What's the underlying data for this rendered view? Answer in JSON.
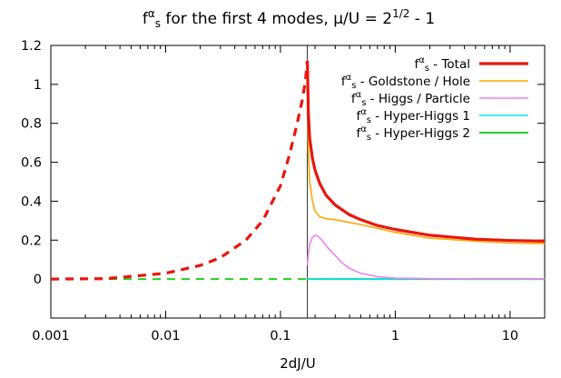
{
  "chart_data": {
    "type": "line",
    "title": {
      "base": "f",
      "sup": "α",
      "sub": "s",
      "rest": " for the first 4 modes, μ/U = 2",
      "exp": "1/2",
      "tail": " - 1"
    },
    "xlabel": "2dJ/U",
    "ylabel": "",
    "x_scale": "log",
    "xlim": [
      0.001,
      20
    ],
    "ylim": [
      -0.2,
      1.2
    ],
    "x_ticks": [
      {
        "value": 0.001,
        "label": "0.001"
      },
      {
        "value": 0.01,
        "label": "0.01"
      },
      {
        "value": 0.1,
        "label": "0.1"
      },
      {
        "value": 1,
        "label": "1"
      },
      {
        "value": 10,
        "label": "10"
      }
    ],
    "y_ticks": [
      {
        "value": 0,
        "label": "0"
      },
      {
        "value": 0.2,
        "label": "0.2"
      },
      {
        "value": 0.4,
        "label": "0.4"
      },
      {
        "value": 0.6,
        "label": "0.6"
      },
      {
        "value": 0.8,
        "label": "0.8"
      },
      {
        "value": 1.0,
        "label": "1"
      },
      {
        "value": 1.2,
        "label": "1.2"
      }
    ],
    "transition_x": 0.1716,
    "legend_position": "top-right",
    "series": [
      {
        "name": "Total",
        "legend_sub": " - Total",
        "color": "#e8160c",
        "width": 3.2,
        "dashed_segment": [
          [
            0.001,
            0.0
          ],
          [
            0.003,
            0.002
          ],
          [
            0.01,
            0.03
          ],
          [
            0.02,
            0.07
          ],
          [
            0.03,
            0.11
          ],
          [
            0.05,
            0.2
          ],
          [
            0.07,
            0.3
          ],
          [
            0.1,
            0.48
          ],
          [
            0.12,
            0.64
          ],
          [
            0.14,
            0.8
          ],
          [
            0.155,
            0.92
          ],
          [
            0.165,
            1.02
          ],
          [
            0.171,
            1.12
          ]
        ],
        "solid_segment": [
          [
            0.1716,
            1.12
          ],
          [
            0.175,
            0.85
          ],
          [
            0.18,
            0.72
          ],
          [
            0.19,
            0.62
          ],
          [
            0.2,
            0.56
          ],
          [
            0.22,
            0.49
          ],
          [
            0.25,
            0.43
          ],
          [
            0.3,
            0.38
          ],
          [
            0.4,
            0.33
          ],
          [
            0.5,
            0.305
          ],
          [
            0.7,
            0.275
          ],
          [
            1.0,
            0.255
          ],
          [
            2.0,
            0.225
          ],
          [
            5.0,
            0.205
          ],
          [
            10,
            0.198
          ],
          [
            20,
            0.195
          ]
        ]
      },
      {
        "name": "Goldstone / Hole",
        "legend_sub": " - Goldstone / Hole",
        "color": "#ffa500",
        "width": 1.6,
        "dashed_segment": [
          [
            0.001,
            0.0
          ],
          [
            0.003,
            0.002
          ],
          [
            0.01,
            0.03
          ],
          [
            0.02,
            0.07
          ],
          [
            0.03,
            0.11
          ],
          [
            0.05,
            0.2
          ],
          [
            0.07,
            0.3
          ],
          [
            0.1,
            0.48
          ],
          [
            0.12,
            0.64
          ],
          [
            0.14,
            0.8
          ],
          [
            0.155,
            0.92
          ],
          [
            0.165,
            1.02
          ],
          [
            0.171,
            1.08
          ]
        ],
        "solid_segment": [
          [
            0.1716,
            1.08
          ],
          [
            0.173,
            0.85
          ],
          [
            0.175,
            0.65
          ],
          [
            0.18,
            0.5
          ],
          [
            0.19,
            0.4
          ],
          [
            0.2,
            0.35
          ],
          [
            0.22,
            0.32
          ],
          [
            0.25,
            0.31
          ],
          [
            0.3,
            0.305
          ],
          [
            0.5,
            0.28
          ],
          [
            1.0,
            0.24
          ],
          [
            2.0,
            0.21
          ],
          [
            5.0,
            0.195
          ],
          [
            10,
            0.185
          ],
          [
            20,
            0.183
          ]
        ]
      },
      {
        "name": "Higgs / Particle",
        "legend_sub": " - Higgs / Particle",
        "color": "#ee82ee",
        "width": 1.6,
        "dashed_segment": [],
        "solid_segment": [
          [
            0.1716,
            0.07
          ],
          [
            0.175,
            0.13
          ],
          [
            0.18,
            0.18
          ],
          [
            0.19,
            0.215
          ],
          [
            0.2,
            0.225
          ],
          [
            0.21,
            0.222
          ],
          [
            0.23,
            0.2
          ],
          [
            0.26,
            0.16
          ],
          [
            0.3,
            0.12
          ],
          [
            0.35,
            0.08
          ],
          [
            0.4,
            0.055
          ],
          [
            0.5,
            0.03
          ],
          [
            0.7,
            0.012
          ],
          [
            1.0,
            0.005
          ],
          [
            2.0,
            0.002
          ],
          [
            5.0,
            0.0
          ],
          [
            20,
            0.0
          ]
        ]
      },
      {
        "name": "Hyper-Higgs 1",
        "legend_sub": " - Hyper-Higgs 1",
        "color": "#00e5ee",
        "width": 1.6,
        "dashed_segment": [],
        "solid_segment": [
          [
            0.1716,
            0.0
          ],
          [
            20,
            0.0
          ]
        ]
      },
      {
        "name": "Hyper-Higgs 2",
        "legend_sub": " - Hyper-Higgs 2",
        "color": "#1fd21f",
        "width": 2.0,
        "dashed_segment": [
          [
            0.001,
            0.0
          ],
          [
            0.1716,
            0.0
          ]
        ],
        "solid_segment": [
          [
            0.1716,
            0.0
          ],
          [
            20,
            0.0
          ]
        ]
      }
    ]
  }
}
